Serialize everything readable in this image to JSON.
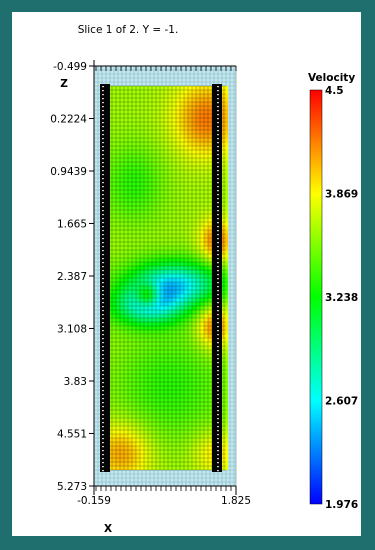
{
  "frame_border_color": "#1f6f6f",
  "chart_data": {
    "type": "heatmap",
    "title": "Slice 1 of 2.  Y = -1.",
    "xlabel": "X",
    "ylabel": "Z",
    "x_ticks": [
      "-0.159",
      "1.825"
    ],
    "y_ticks": [
      "-0.499",
      "0.2224",
      "0.9439",
      "1.665",
      "2.387",
      "3.108",
      "3.83",
      "4.551",
      "5.273"
    ],
    "xlim": [
      -0.159,
      1.825
    ],
    "ylim": [
      -0.499,
      5.273
    ],
    "y_inverted": true,
    "colorbar": {
      "title": "Velocity",
      "ticks": [
        "4.5",
        "3.869",
        "3.238",
        "2.607",
        "1.976"
      ],
      "range": [
        1.976,
        4.5
      ],
      "colormap": [
        "#0000ff",
        "#00ffff",
        "#00ff00",
        "#ffff00",
        "#ff0000"
      ]
    }
  }
}
